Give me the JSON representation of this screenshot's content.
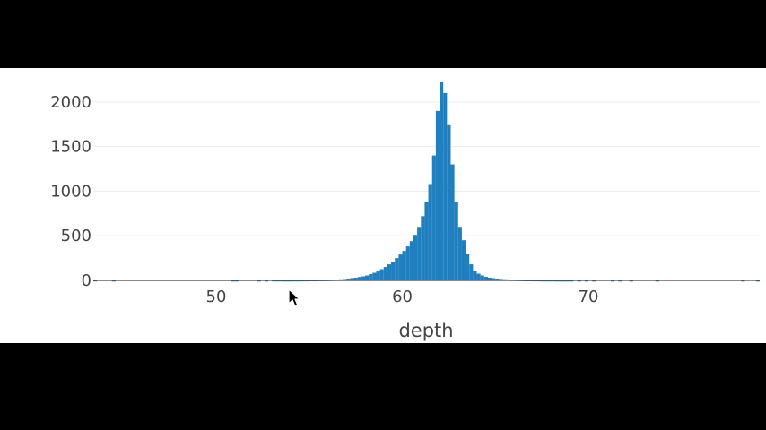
{
  "chart_data": {
    "type": "bar",
    "title": "",
    "xlabel": "depth",
    "ylabel": "",
    "xlim": [
      43.4,
      79.2
    ],
    "ylim": [
      0,
      2280
    ],
    "x_ticks": [
      50,
      60,
      70
    ],
    "x_tick_labels": [
      "50",
      "60",
      "70"
    ],
    "y_ticks": [
      0,
      500,
      1000,
      1500,
      2000
    ],
    "y_tick_labels": [
      "0",
      "500",
      "1000",
      "1500",
      "2000"
    ],
    "grid": {
      "y": true,
      "x": false
    },
    "legend": false,
    "bar_color": "#1f7fbf",
    "bin_width": 0.2,
    "bins": [
      {
        "x": 43.4,
        "y": 3
      },
      {
        "x": 44.4,
        "y": 2
      },
      {
        "x": 50.8,
        "y": 2
      },
      {
        "x": 51.0,
        "y": 2
      },
      {
        "x": 52.2,
        "y": 2
      },
      {
        "x": 52.6,
        "y": 2
      },
      {
        "x": 53.0,
        "y": 3
      },
      {
        "x": 53.2,
        "y": 3
      },
      {
        "x": 53.4,
        "y": 3
      },
      {
        "x": 53.6,
        "y": 2
      },
      {
        "x": 53.8,
        "y": 2
      },
      {
        "x": 54.0,
        "y": 3
      },
      {
        "x": 54.2,
        "y": 3
      },
      {
        "x": 54.4,
        "y": 3
      },
      {
        "x": 54.6,
        "y": 4
      },
      {
        "x": 54.8,
        "y": 4
      },
      {
        "x": 55.0,
        "y": 5
      },
      {
        "x": 55.2,
        "y": 5
      },
      {
        "x": 55.4,
        "y": 6
      },
      {
        "x": 55.6,
        "y": 6
      },
      {
        "x": 55.8,
        "y": 7
      },
      {
        "x": 56.0,
        "y": 8
      },
      {
        "x": 56.2,
        "y": 9
      },
      {
        "x": 56.4,
        "y": 10
      },
      {
        "x": 56.6,
        "y": 12
      },
      {
        "x": 56.8,
        "y": 15
      },
      {
        "x": 57.0,
        "y": 20
      },
      {
        "x": 57.2,
        "y": 26
      },
      {
        "x": 57.4,
        "y": 30
      },
      {
        "x": 57.6,
        "y": 38
      },
      {
        "x": 57.8,
        "y": 45
      },
      {
        "x": 58.0,
        "y": 55
      },
      {
        "x": 58.2,
        "y": 70
      },
      {
        "x": 58.4,
        "y": 85
      },
      {
        "x": 58.6,
        "y": 100
      },
      {
        "x": 58.8,
        "y": 125
      },
      {
        "x": 59.0,
        "y": 150
      },
      {
        "x": 59.2,
        "y": 180
      },
      {
        "x": 59.4,
        "y": 210
      },
      {
        "x": 59.6,
        "y": 250
      },
      {
        "x": 59.8,
        "y": 290
      },
      {
        "x": 60.0,
        "y": 330
      },
      {
        "x": 60.2,
        "y": 380
      },
      {
        "x": 60.4,
        "y": 440
      },
      {
        "x": 60.6,
        "y": 510
      },
      {
        "x": 60.8,
        "y": 600
      },
      {
        "x": 61.0,
        "y": 720
      },
      {
        "x": 61.2,
        "y": 880
      },
      {
        "x": 61.4,
        "y": 1080
      },
      {
        "x": 61.6,
        "y": 1400
      },
      {
        "x": 61.8,
        "y": 1900
      },
      {
        "x": 62.0,
        "y": 2230
      },
      {
        "x": 62.2,
        "y": 2100
      },
      {
        "x": 62.4,
        "y": 1750
      },
      {
        "x": 62.6,
        "y": 1300
      },
      {
        "x": 62.8,
        "y": 880
      },
      {
        "x": 63.0,
        "y": 600
      },
      {
        "x": 63.2,
        "y": 450
      },
      {
        "x": 63.4,
        "y": 300
      },
      {
        "x": 63.6,
        "y": 180
      },
      {
        "x": 63.8,
        "y": 110
      },
      {
        "x": 64.0,
        "y": 75
      },
      {
        "x": 64.2,
        "y": 55
      },
      {
        "x": 64.4,
        "y": 40
      },
      {
        "x": 64.6,
        "y": 30
      },
      {
        "x": 64.8,
        "y": 25
      },
      {
        "x": 65.0,
        "y": 20
      },
      {
        "x": 65.2,
        "y": 16
      },
      {
        "x": 65.4,
        "y": 13
      },
      {
        "x": 65.6,
        "y": 11
      },
      {
        "x": 65.8,
        "y": 9
      },
      {
        "x": 66.0,
        "y": 8
      },
      {
        "x": 66.2,
        "y": 7
      },
      {
        "x": 66.4,
        "y": 6
      },
      {
        "x": 66.6,
        "y": 5
      },
      {
        "x": 66.8,
        "y": 5
      },
      {
        "x": 67.0,
        "y": 4
      },
      {
        "x": 67.2,
        "y": 4
      },
      {
        "x": 67.4,
        "y": 3
      },
      {
        "x": 67.6,
        "y": 3
      },
      {
        "x": 67.8,
        "y": 3
      },
      {
        "x": 68.0,
        "y": 3
      },
      {
        "x": 68.2,
        "y": 2
      },
      {
        "x": 68.4,
        "y": 2
      },
      {
        "x": 68.6,
        "y": 2
      },
      {
        "x": 68.8,
        "y": 2
      },
      {
        "x": 69.0,
        "y": 2
      },
      {
        "x": 69.4,
        "y": 2
      },
      {
        "x": 69.8,
        "y": 2
      },
      {
        "x": 70.2,
        "y": 2
      },
      {
        "x": 71.2,
        "y": 2
      },
      {
        "x": 71.6,
        "y": 2
      },
      {
        "x": 72.2,
        "y": 2
      },
      {
        "x": 73.6,
        "y": 2
      },
      {
        "x": 78.2,
        "y": 2
      },
      {
        "x": 79.0,
        "y": 2
      }
    ]
  }
}
